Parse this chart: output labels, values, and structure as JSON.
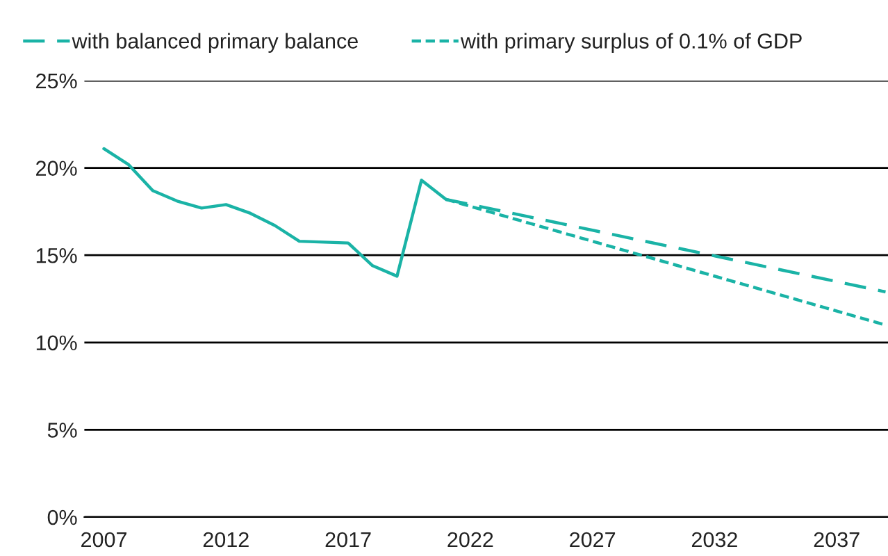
{
  "chart_data": {
    "type": "line",
    "xlim": [
      2006.2,
      2039.1
    ],
    "xticks": [
      2007,
      2012,
      2017,
      2022,
      2027,
      2032,
      2037
    ],
    "ylim": [
      0,
      25
    ],
    "yticks": [
      {
        "value": 0,
        "label": "0%"
      },
      {
        "value": 5,
        "label": "5%"
      },
      {
        "value": 10,
        "label": "10%"
      },
      {
        "value": 15,
        "label": "15%"
      },
      {
        "value": 20,
        "label": "20%"
      },
      {
        "value": 25,
        "label": "25%"
      }
    ],
    "grid": "y",
    "legend": "top left",
    "marker": "none",
    "series": [
      {
        "color": "#1ab3a6",
        "line_style": "solid",
        "x": [
          2007,
          2008,
          2009,
          2010,
          2011,
          2012,
          2013,
          2014,
          2015,
          2017,
          2018,
          2019,
          2020,
          2021
        ],
        "values": [
          21.1,
          20.2,
          18.7,
          18.1,
          17.7,
          17.9,
          17.4,
          16.7,
          15.8,
          15.7,
          14.4,
          13.8,
          19.3,
          18.2
        ]
      },
      {
        "name": "with balanced primary balance",
        "color": "#1ab3a6",
        "line_style": "dashed",
        "x": [
          2021,
          2039
        ],
        "values": [
          18.2,
          12.9
        ]
      },
      {
        "name": "with primary surplus of 0.1% of GDP",
        "color": "#1ab3a6",
        "line_style": "dotted",
        "x": [
          2021,
          2039
        ],
        "values": [
          18.2,
          11.0
        ]
      }
    ]
  }
}
